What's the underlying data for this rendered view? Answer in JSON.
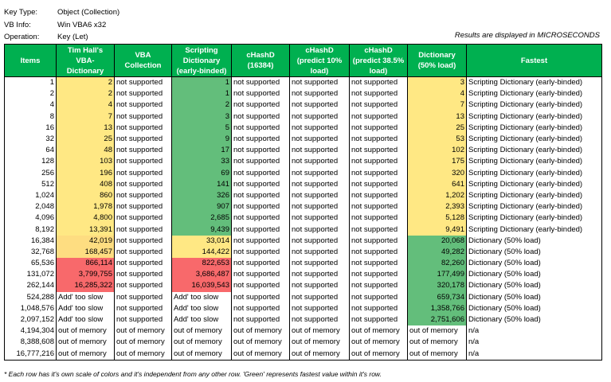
{
  "header": {
    "info": [
      {
        "label": "Key Type:",
        "value": "Object (Collection)"
      },
      {
        "label": "VB Info:",
        "value": "Win VBA6 x32"
      },
      {
        "label": "Operation:",
        "value": "Key (Let)"
      }
    ],
    "note": "Results are displayed in MICROSECONDS"
  },
  "table": {
    "columns": [
      "Items",
      "Tim Hall's VBA-Dictionary",
      "VBA Collection",
      "Scripting Dictionary (early-binded)",
      "cHashD (16384)",
      "cHashD (predict 10% load)",
      "cHashD (predict 38.5% load)",
      "Dictionary (50% load)",
      "Fastest"
    ],
    "rows": [
      {
        "cells": [
          "1",
          "2",
          "not supported",
          "1",
          "not supported",
          "not supported",
          "not supported",
          "3",
          "Scripting Dictionary (early-binded)"
        ],
        "fills": [
          null,
          "#ffe884",
          null,
          "#63be7b",
          null,
          null,
          null,
          "#ffe884",
          null
        ]
      },
      {
        "cells": [
          "2",
          "2",
          "not supported",
          "1",
          "not supported",
          "not supported",
          "not supported",
          "4",
          "Scripting Dictionary (early-binded)"
        ],
        "fills": [
          null,
          "#ffe884",
          null,
          "#63be7b",
          null,
          null,
          null,
          "#ffe884",
          null
        ]
      },
      {
        "cells": [
          "4",
          "4",
          "not supported",
          "2",
          "not supported",
          "not supported",
          "not supported",
          "7",
          "Scripting Dictionary (early-binded)"
        ],
        "fills": [
          null,
          "#ffe884",
          null,
          "#63be7b",
          null,
          null,
          null,
          "#ffe884",
          null
        ]
      },
      {
        "cells": [
          "8",
          "7",
          "not supported",
          "3",
          "not supported",
          "not supported",
          "not supported",
          "13",
          "Scripting Dictionary (early-binded)"
        ],
        "fills": [
          null,
          "#ffe884",
          null,
          "#63be7b",
          null,
          null,
          null,
          "#ffe884",
          null
        ]
      },
      {
        "cells": [
          "16",
          "13",
          "not supported",
          "5",
          "not supported",
          "not supported",
          "not supported",
          "25",
          "Scripting Dictionary (early-binded)"
        ],
        "fills": [
          null,
          "#ffe884",
          null,
          "#63be7b",
          null,
          null,
          null,
          "#ffe884",
          null
        ]
      },
      {
        "cells": [
          "32",
          "25",
          "not supported",
          "9",
          "not supported",
          "not supported",
          "not supported",
          "53",
          "Scripting Dictionary (early-binded)"
        ],
        "fills": [
          null,
          "#ffe884",
          null,
          "#63be7b",
          null,
          null,
          null,
          "#ffe884",
          null
        ]
      },
      {
        "cells": [
          "64",
          "48",
          "not supported",
          "17",
          "not supported",
          "not supported",
          "not supported",
          "102",
          "Scripting Dictionary (early-binded)"
        ],
        "fills": [
          null,
          "#ffe884",
          null,
          "#63be7b",
          null,
          null,
          null,
          "#ffe884",
          null
        ]
      },
      {
        "cells": [
          "128",
          "103",
          "not supported",
          "33",
          "not supported",
          "not supported",
          "not supported",
          "175",
          "Scripting Dictionary (early-binded)"
        ],
        "fills": [
          null,
          "#ffe884",
          null,
          "#63be7b",
          null,
          null,
          null,
          "#ffe884",
          null
        ]
      },
      {
        "cells": [
          "256",
          "196",
          "not supported",
          "69",
          "not supported",
          "not supported",
          "not supported",
          "320",
          "Scripting Dictionary (early-binded)"
        ],
        "fills": [
          null,
          "#ffe884",
          null,
          "#63be7b",
          null,
          null,
          null,
          "#ffe884",
          null
        ]
      },
      {
        "cells": [
          "512",
          "408",
          "not supported",
          "141",
          "not supported",
          "not supported",
          "not supported",
          "641",
          "Scripting Dictionary (early-binded)"
        ],
        "fills": [
          null,
          "#ffe884",
          null,
          "#63be7b",
          null,
          null,
          null,
          "#ffe884",
          null
        ]
      },
      {
        "cells": [
          "1,024",
          "860",
          "not supported",
          "326",
          "not supported",
          "not supported",
          "not supported",
          "1,202",
          "Scripting Dictionary (early-binded)"
        ],
        "fills": [
          null,
          "#ffe884",
          null,
          "#63be7b",
          null,
          null,
          null,
          "#ffe884",
          null
        ]
      },
      {
        "cells": [
          "2,048",
          "1,978",
          "not supported",
          "907",
          "not supported",
          "not supported",
          "not supported",
          "2,393",
          "Scripting Dictionary (early-binded)"
        ],
        "fills": [
          null,
          "#ffe884",
          null,
          "#63be7b",
          null,
          null,
          null,
          "#ffe884",
          null
        ]
      },
      {
        "cells": [
          "4,096",
          "4,800",
          "not supported",
          "2,685",
          "not supported",
          "not supported",
          "not supported",
          "5,128",
          "Scripting Dictionary (early-binded)"
        ],
        "fills": [
          null,
          "#ffe884",
          null,
          "#63be7b",
          null,
          null,
          null,
          "#ffe884",
          null
        ]
      },
      {
        "cells": [
          "8,192",
          "13,391",
          "not supported",
          "9,439",
          "not supported",
          "not supported",
          "not supported",
          "9,491",
          "Scripting Dictionary (early-binded)"
        ],
        "fills": [
          null,
          "#ffe884",
          null,
          "#63be7b",
          null,
          null,
          null,
          "#ffe884",
          null
        ]
      },
      {
        "cells": [
          "16,384",
          "42,019",
          "not supported",
          "33,014",
          "not supported",
          "not supported",
          "not supported",
          "20,068",
          "Dictionary (50% load)"
        ],
        "fills": [
          null,
          "#fedd81",
          null,
          "#ffe884",
          null,
          null,
          null,
          "#63be7b",
          null
        ]
      },
      {
        "cells": [
          "32,768",
          "168,457",
          "not supported",
          "144,422",
          "not supported",
          "not supported",
          "not supported",
          "49,282",
          "Dictionary (50% load)"
        ],
        "fills": [
          null,
          "#fedd81",
          null,
          "#ffe884",
          null,
          null,
          null,
          "#63be7b",
          null
        ]
      },
      {
        "cells": [
          "65,536",
          "866,114",
          "not supported",
          "822,653",
          "not supported",
          "not supported",
          "not supported",
          "82,260",
          "Dictionary (50% load)"
        ],
        "fills": [
          null,
          "#f8696b",
          null,
          "#f8696b",
          null,
          null,
          null,
          "#63be7b",
          null
        ]
      },
      {
        "cells": [
          "131,072",
          "3,799,755",
          "not supported",
          "3,686,487",
          "not supported",
          "not supported",
          "not supported",
          "177,499",
          "Dictionary (50% load)"
        ],
        "fills": [
          null,
          "#f8696b",
          null,
          "#f8696b",
          null,
          null,
          null,
          "#63be7b",
          null
        ]
      },
      {
        "cells": [
          "262,144",
          "16,285,322",
          "not supported",
          "16,039,543",
          "not supported",
          "not supported",
          "not supported",
          "320,178",
          "Dictionary (50% load)"
        ],
        "fills": [
          null,
          "#f8696b",
          null,
          "#f8696b",
          null,
          null,
          null,
          "#63be7b",
          null
        ]
      },
      {
        "cells": [
          "524,288",
          "Add' too slow",
          "not supported",
          "Add' too slow",
          "not supported",
          "not supported",
          "not supported",
          "659,734",
          "Dictionary (50% load)"
        ],
        "fills": [
          null,
          null,
          null,
          null,
          null,
          null,
          null,
          "#63be7b",
          null
        ]
      },
      {
        "cells": [
          "1,048,576",
          "Add' too slow",
          "not supported",
          "Add' too slow",
          "not supported",
          "not supported",
          "not supported",
          "1,358,766",
          "Dictionary (50% load)"
        ],
        "fills": [
          null,
          null,
          null,
          null,
          null,
          null,
          null,
          "#63be7b",
          null
        ]
      },
      {
        "cells": [
          "2,097,152",
          "Add' too slow",
          "not supported",
          "Add' too slow",
          "not supported",
          "not supported",
          "not supported",
          "2,751,606",
          "Dictionary (50% load)"
        ],
        "fills": [
          null,
          null,
          null,
          null,
          null,
          null,
          null,
          "#63be7b",
          null
        ]
      },
      {
        "cells": [
          "4,194,304",
          "out of memory",
          "out of memory",
          "out of memory",
          "out of memory",
          "out of memory",
          "out of memory",
          "out of memory",
          "n/a"
        ],
        "fills": [
          null,
          null,
          null,
          null,
          null,
          null,
          null,
          null,
          null
        ]
      },
      {
        "cells": [
          "8,388,608",
          "out of memory",
          "out of memory",
          "out of memory",
          "out of memory",
          "out of memory",
          "out of memory",
          "out of memory",
          "n/a"
        ],
        "fills": [
          null,
          null,
          null,
          null,
          null,
          null,
          null,
          null,
          null
        ]
      },
      {
        "cells": [
          "16,777,216",
          "out of memory",
          "out of memory",
          "out of memory",
          "out of memory",
          "out of memory",
          "out of memory",
          "out of memory",
          "n/a"
        ],
        "fills": [
          null,
          null,
          null,
          null,
          null,
          null,
          null,
          null,
          null
        ]
      }
    ]
  },
  "footnote": "* Each row has it's own scale of colors and it's independent from any other row. 'Green' represents fastest value within it's row."
}
